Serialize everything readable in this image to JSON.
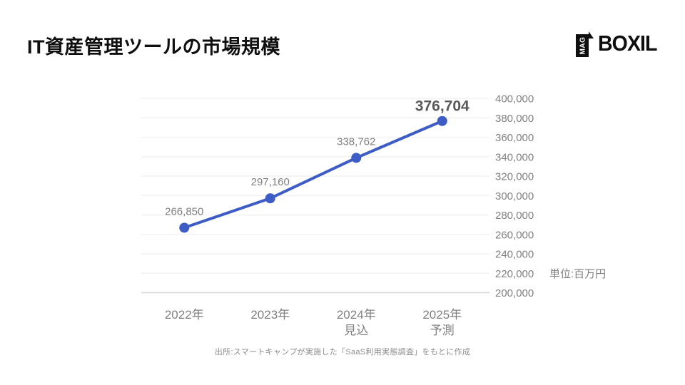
{
  "header": {
    "title": "IT資産管理ツールの市場規模",
    "logo": {
      "mag": "MAG",
      "brand": "BOXIL"
    }
  },
  "footer": {
    "source_note": "出所:スマートキャンプが実施した「SaaS利用実態調査」をもとに作成"
  },
  "chart_data": {
    "type": "line",
    "title": "IT資産管理ツールの市場規模",
    "unit_label": "単位:百万円",
    "categories": [
      "2022年",
      "2023年",
      "2024年\n見込",
      "2025年\n予測"
    ],
    "values": [
      266850,
      297160,
      338762,
      376704
    ],
    "data_labels": [
      "266,850",
      "297,160",
      "338,762",
      "376,704"
    ],
    "emphasized_point_index": 3,
    "ylim": [
      200000,
      400000
    ],
    "y_tick_values": [
      200000,
      220000,
      240000,
      260000,
      280000,
      300000,
      320000,
      340000,
      360000,
      380000,
      400000
    ],
    "y_tick_labels": [
      "200,000",
      "220,000",
      "240,000",
      "260,000",
      "280,000",
      "300,000",
      "320,000",
      "340,000",
      "360,000",
      "380,000",
      "400,000"
    ],
    "grid": true,
    "legend": "none",
    "colors": {
      "line": "#3d5cc5",
      "marker": "#3d5cc5",
      "gridline": "#f2f2f2",
      "baseline": "#d7d7d7",
      "tick_text": "#808080",
      "data_label": "#7f7f7f",
      "emphasized_label": "#595959"
    }
  }
}
